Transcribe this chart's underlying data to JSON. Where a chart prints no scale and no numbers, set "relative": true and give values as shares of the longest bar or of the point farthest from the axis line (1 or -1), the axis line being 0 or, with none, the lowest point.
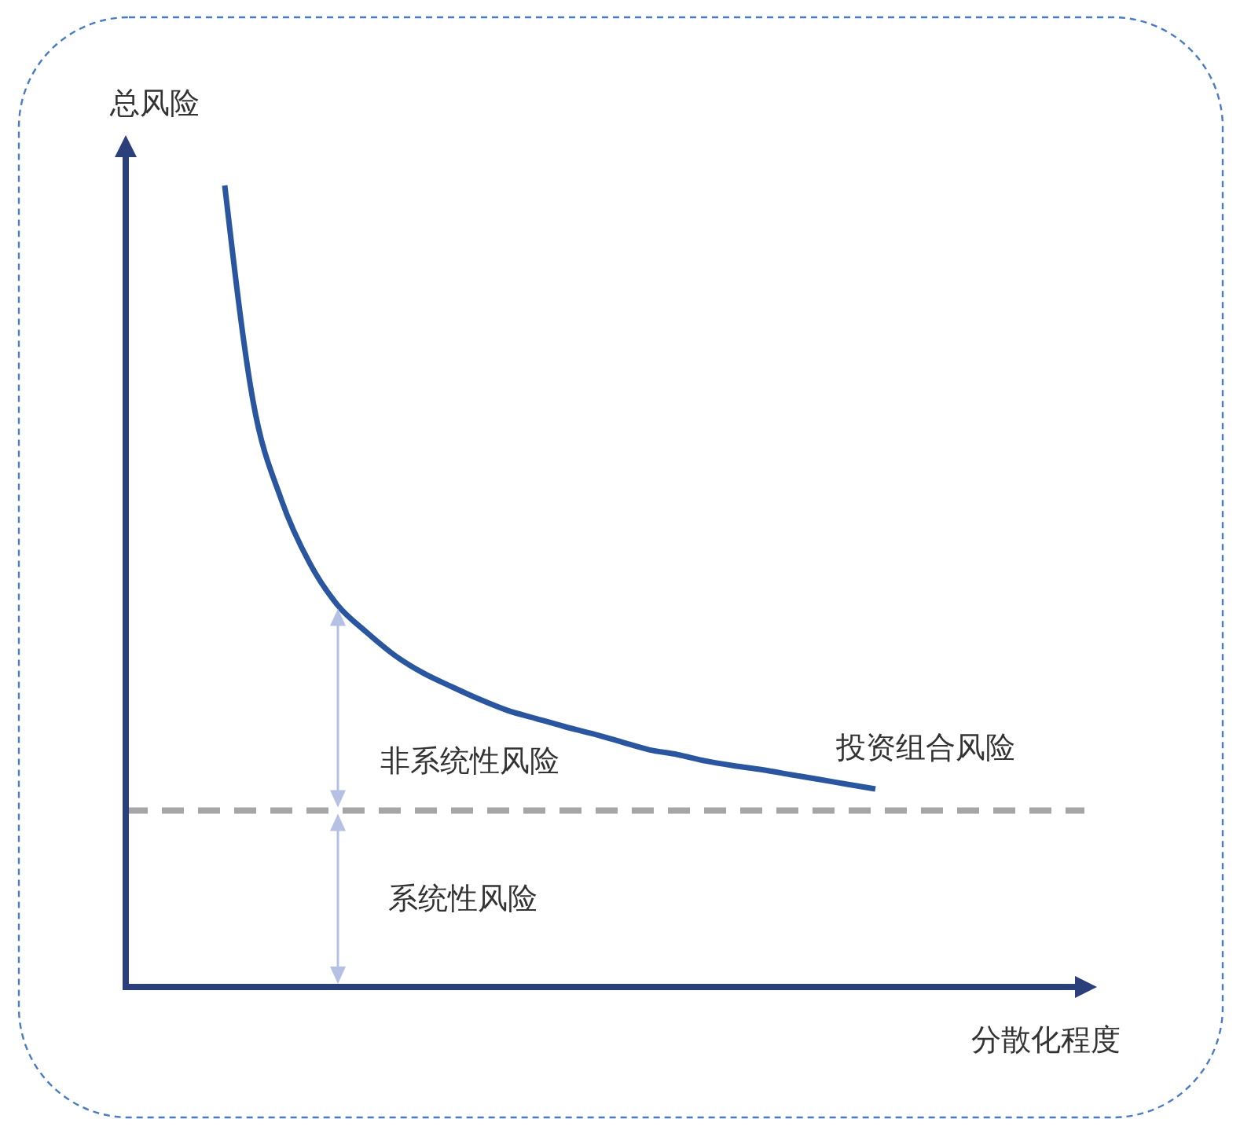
{
  "chart_data": {
    "type": "line",
    "relative": true,
    "xlabel": "分散化程度",
    "ylabel": "总风险",
    "categories": [
      null,
      null,
      null,
      null,
      null,
      null,
      null,
      null,
      null,
      null,
      null,
      null,
      null,
      null,
      null,
      null,
      null,
      null,
      null,
      null,
      null,
      null,
      null,
      null
    ],
    "series": [
      {
        "name": "投资组合风险",
        "color": "#2a56a0",
        "values": [
          1.0,
          0.731,
          0.608,
          0.529,
          0.476,
          0.443,
          0.414,
          0.392,
          0.375,
          0.359,
          0.345,
          0.335,
          0.325,
          0.316,
          0.306,
          0.296,
          0.29,
          0.282,
          0.276,
          0.271,
          0.265,
          0.259,
          0.253,
          0.247
        ]
      }
    ],
    "ref_lines": [
      {
        "axis": "y",
        "value": 0.22,
        "color": "#a6a6a6",
        "line_style": "dashed"
      }
    ],
    "annotations": [
      "非系统性风险",
      "系统性风险"
    ],
    "legend": false,
    "marker": "none",
    "line_style": "solid"
  }
}
